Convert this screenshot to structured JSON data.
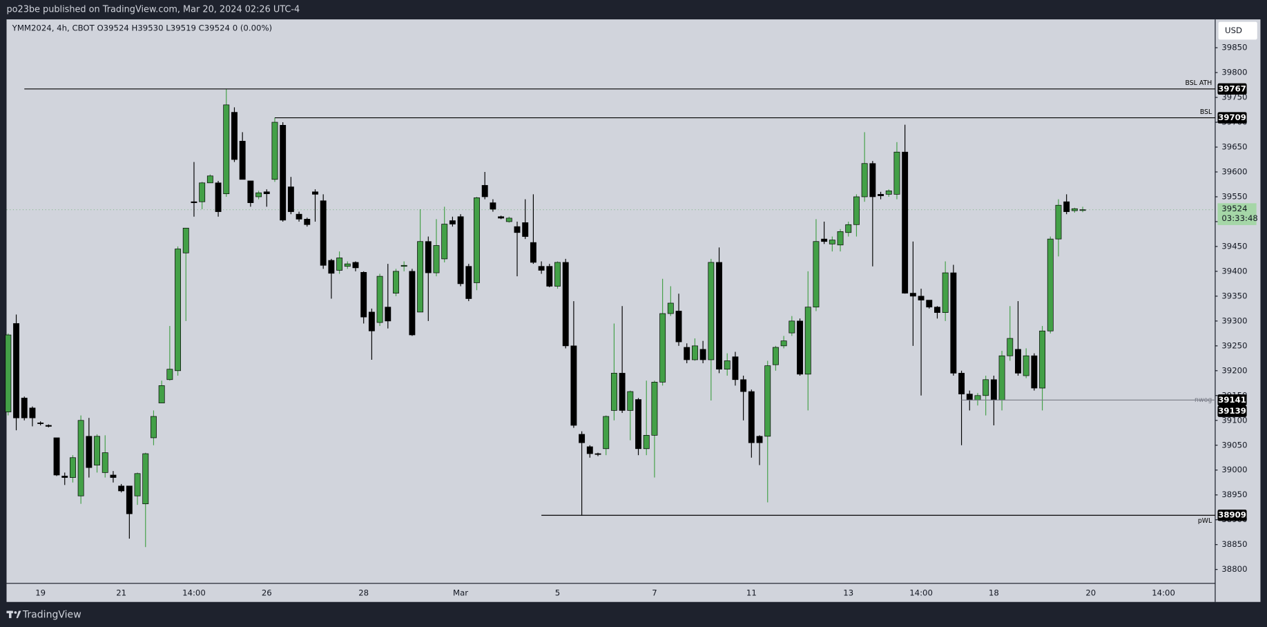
{
  "header": {
    "title": "po23be published on TradingView.com, Mar 20, 2024 02:26 UTC-4"
  },
  "footer": {
    "brand": "TradingView"
  },
  "chart_data": {
    "type": "candlestick",
    "legend": "YMM2024, 4h, CBOT  O39524  H39530  L39519  C39524  0 (0.00%)",
    "currency": "USD",
    "categories": [
      null,
      null,
      null,
      null,
      "19",
      null,
      null,
      null,
      null,
      null,
      null,
      null,
      null,
      null,
      "21",
      null,
      null,
      null,
      null,
      null,
      null,
      null,
      null,
      "14:00",
      null,
      null,
      null,
      null,
      null,
      null,
      null,
      null,
      "26",
      null,
      null,
      null,
      null,
      null,
      null,
      null,
      null,
      null,
      null,
      null,
      "28",
      null,
      null,
      null,
      null,
      null,
      null,
      null,
      null,
      null,
      null,
      null,
      "Mar",
      null,
      null,
      null,
      null,
      null,
      null,
      null,
      null,
      null,
      null,
      null,
      "5",
      null,
      null,
      null,
      null,
      null,
      null,
      null,
      null,
      null,
      null,
      null,
      "7",
      null,
      null,
      null,
      null,
      null,
      null,
      null,
      null,
      null,
      null,
      null,
      "11",
      null,
      null,
      null,
      null,
      null,
      null,
      null,
      null,
      null,
      null,
      null,
      "13",
      null,
      null,
      null,
      null,
      null,
      null,
      null,
      null,
      "14:00",
      null,
      null,
      null,
      null,
      null,
      null,
      null,
      null,
      "18",
      null,
      null,
      null,
      null,
      null,
      null,
      null,
      null,
      null,
      null,
      null,
      "20",
      null,
      null,
      null,
      null,
      null,
      null,
      null,
      null,
      "14:00",
      null,
      null,
      null,
      null,
      null,
      null
    ],
    "open": [
      39117,
      39295,
      39145,
      39125,
      39095,
      39090,
      39065,
      38988,
      38985,
      38948,
      39068,
      39010,
      38995,
      38990,
      38968,
      38968,
      38948,
      38932,
      39065,
      39135,
      39182,
      39200,
      39437,
      39540,
      39540,
      39578,
      39578,
      39556,
      39720,
      39662,
      39582,
      39550,
      39560,
      39585,
      39694,
      39570,
      39515,
      39505,
      39560,
      39542,
      39422,
      39402,
      39410,
      39418,
      39398,
      39318,
      39297,
      39328,
      39356,
      39410,
      39400,
      39318,
      39460,
      39397,
      39425,
      39502,
      39510,
      39410,
      39377,
      39573,
      39538,
      39510,
      39500,
      39490,
      39498,
      39458,
      39410,
      39410,
      39370,
      39418,
      39250,
      39072,
      39047,
      39033,
      39043,
      39120,
      39195,
      39120,
      39142,
      39043,
      39070,
      39177,
      39315,
      39320,
      39247,
      39222,
      39243,
      39222,
      39418,
      39203,
      39228,
      39182,
      39158,
      39068,
      39068,
      39212,
      39250,
      39276,
      39300,
      39193,
      39328,
      39465,
      39455,
      39453,
      39478,
      39494,
      39550,
      39617,
      39555,
      39555,
      39555,
      39640,
      39356,
      39350,
      39342,
      39328,
      39317,
      39397,
      39195,
      39153,
      39141,
      39150,
      39182,
      39141,
      39230,
      39243,
      39190,
      39230,
      39165,
      39280,
      39465,
      39540,
      39522,
      39524,
      null,
      null,
      null,
      null,
      null,
      null,
      null,
      null,
      null,
      null,
      null,
      null,
      null,
      null,
      null,
      null
    ],
    "high": [
      39275,
      39313,
      39148,
      39128,
      39098,
      39092,
      39065,
      38995,
      39030,
      39110,
      39105,
      39072,
      39070,
      38998,
      38972,
      38968,
      38995,
      39035,
      39120,
      39180,
      39290,
      39450,
      39487,
      39620,
      39580,
      39595,
      39582,
      39767,
      39730,
      39680,
      39582,
      39562,
      39565,
      39709,
      39700,
      39590,
      39520,
      39508,
      39565,
      39555,
      39425,
      39440,
      39420,
      39420,
      39400,
      39325,
      39395,
      39415,
      39405,
      39420,
      39405,
      39525,
      39470,
      39505,
      39530,
      39510,
      39515,
      39415,
      39550,
      39600,
      39545,
      39512,
      39510,
      39500,
      39545,
      39555,
      39420,
      39415,
      39420,
      39425,
      39340,
      39078,
      39050,
      39035,
      39110,
      39295,
      39330,
      39160,
      39145,
      39180,
      39180,
      39385,
      39370,
      39355,
      39255,
      39265,
      39260,
      39425,
      39448,
      39235,
      39238,
      39190,
      39162,
      39070,
      39220,
      39250,
      39270,
      39310,
      39305,
      39400,
      39505,
      39500,
      39470,
      39485,
      39500,
      39555,
      39680,
      39622,
      39560,
      39565,
      39660,
      39695,
      39460,
      39365,
      39342,
      39330,
      39420,
      39413,
      39200,
      39160,
      39155,
      39190,
      39190,
      39240,
      39330,
      39340,
      39245,
      39235,
      39290,
      39470,
      39545,
      39555,
      39528,
      39530,
      null,
      null,
      null,
      null,
      null,
      null,
      null,
      null,
      null,
      null,
      null,
      null,
      null,
      null,
      null,
      null
    ],
    "low": [
      39110,
      39080,
      39100,
      39088,
      39090,
      39086,
      38988,
      38970,
      38975,
      38932,
      38985,
      38995,
      38985,
      38975,
      38955,
      38862,
      38930,
      38845,
      39050,
      39135,
      39180,
      39190,
      39300,
      39510,
      39525,
      39578,
      39510,
      39550,
      39620,
      39585,
      39530,
      39545,
      39530,
      39580,
      39500,
      39515,
      39500,
      39490,
      39500,
      39405,
      39345,
      39395,
      39405,
      39400,
      39295,
      39222,
      39290,
      39285,
      39350,
      39400,
      39270,
      39318,
      39300,
      39390,
      39418,
      39490,
      39370,
      39340,
      39362,
      39545,
      39520,
      39505,
      39498,
      39390,
      39465,
      39415,
      39395,
      39368,
      39365,
      39245,
      39085,
      38909,
      39025,
      39028,
      39030,
      39100,
      39115,
      39060,
      39030,
      39030,
      38985,
      39170,
      39310,
      39250,
      39215,
      39220,
      39215,
      39140,
      39195,
      39190,
      39170,
      39100,
      39025,
      39010,
      38935,
      39200,
      39245,
      39270,
      39190,
      39120,
      39320,
      39455,
      39440,
      39440,
      39470,
      39470,
      39540,
      39410,
      39545,
      39550,
      39545,
      39355,
      39250,
      39150,
      39325,
      39305,
      39300,
      39190,
      39050,
      39120,
      39130,
      39110,
      39090,
      39120,
      39220,
      39190,
      39185,
      39160,
      39120,
      39275,
      39430,
      39515,
      39518,
      39519,
      null,
      null,
      null,
      null,
      null,
      null,
      null,
      null,
      null,
      null,
      null,
      null,
      null,
      null,
      null,
      null
    ],
    "close": [
      39272,
      39105,
      39105,
      39105,
      39094,
      39088,
      38990,
      38985,
      39025,
      39100,
      39005,
      39068,
      39035,
      38985,
      38958,
      38912,
      38993,
      39033,
      39108,
      39170,
      39203,
      39445,
      39487,
      39538,
      39578,
      39592,
      39520,
      39735,
      39625,
      39585,
      39538,
      39558,
      39556,
      39700,
      39503,
      39520,
      39505,
      39494,
      39555,
      39412,
      39396,
      39427,
      39415,
      39407,
      39308,
      39280,
      39390,
      39300,
      39400,
      39412,
      39272,
      39460,
      39397,
      39452,
      39495,
      39495,
      39375,
      39345,
      39548,
      39550,
      39525,
      39507,
      39507,
      39478,
      39470,
      39418,
      39402,
      39370,
      39418,
      39250,
      39090,
      39055,
      39033,
      39032,
      39108,
      39195,
      39120,
      39158,
      39043,
      39070,
      39177,
      39315,
      39336,
      39258,
      39222,
      39250,
      39222,
      39418,
      39203,
      39220,
      39182,
      39158,
      39055,
      39055,
      39210,
      39247,
      39260,
      39300,
      39193,
      39328,
      39460,
      39460,
      39463,
      39480,
      39494,
      39550,
      39617,
      39550,
      39552,
      39562,
      39640,
      39356,
      39350,
      39342,
      39328,
      39317,
      39397,
      39195,
      39153,
      39141,
      39150,
      39182,
      39141,
      39230,
      39265,
      39195,
      39230,
      39165,
      39280,
      39465,
      39533,
      39520,
      39526,
      39524,
      null,
      null,
      null,
      null,
      null,
      null,
      null,
      null,
      null,
      null,
      null,
      null,
      null,
      null,
      null,
      null
    ],
    "up_color": "#43a047",
    "down_color": "#000000",
    "ylim": [
      38772,
      39907
    ],
    "yticks": [
      38800,
      38850,
      38900,
      38950,
      39000,
      39050,
      39100,
      39150,
      39200,
      39250,
      39300,
      39350,
      39400,
      39450,
      39500,
      39550,
      39600,
      39650,
      39700,
      39750,
      39800,
      39850
    ],
    "grid": false,
    "levels": [
      {
        "label": "BSL ATH",
        "value": 39767
      },
      {
        "label": "BSL",
        "value": 39709
      },
      {
        "label": "nwog",
        "value": 39141
      },
      {
        "value": 39139
      },
      {
        "label": "pWL",
        "value": 38909
      }
    ],
    "last_price": 39524,
    "countdown": "03:33:48"
  }
}
